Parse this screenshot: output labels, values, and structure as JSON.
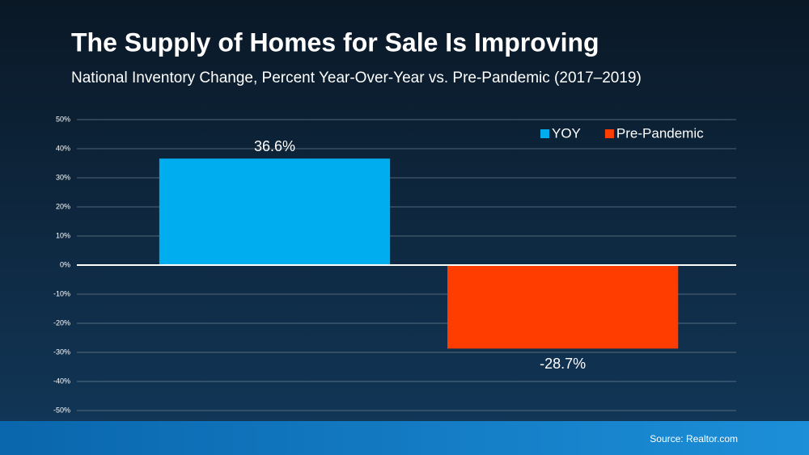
{
  "chart_data": {
    "type": "bar",
    "title": "The Supply of Homes for Sale Is Improving",
    "subtitle": "National Inventory Change, Percent Year-Over-Year vs. Pre-Pandemic (2017–2019)",
    "categories": [
      null
    ],
    "series": [
      {
        "name": "YOY",
        "color": "#00adef",
        "values": [
          36.6
        ],
        "value_labels": [
          "36.6%"
        ]
      },
      {
        "name": "Pre-Pandemic",
        "color": "#ff3d00",
        "values": [
          -28.7
        ],
        "value_labels": [
          "-28.7%"
        ]
      }
    ],
    "ylim": [
      -50,
      50
    ],
    "yticks": [
      {
        "value": -50,
        "label": "-50%"
      },
      {
        "value": -40,
        "label": "-40%"
      },
      {
        "value": -30,
        "label": "-30%"
      },
      {
        "value": -20,
        "label": "-20%"
      },
      {
        "value": -10,
        "label": "-10%"
      },
      {
        "value": 0,
        "label": "0%"
      },
      {
        "value": 10,
        "label": "10%"
      },
      {
        "value": 20,
        "label": "20%"
      },
      {
        "value": 30,
        "label": "30%"
      },
      {
        "value": 40,
        "label": "40%"
      },
      {
        "value": 50,
        "label": "50%"
      }
    ],
    "grid": true,
    "legend": "top-right",
    "source": "Source: Realtor.com"
  }
}
